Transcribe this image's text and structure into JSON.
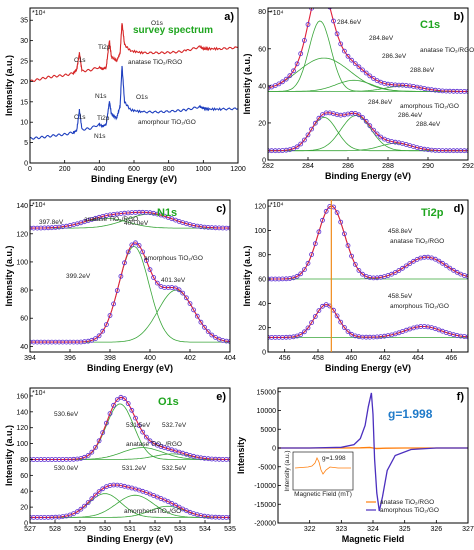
{
  "figure": {
    "panels": [
      {
        "id": "a",
        "panel_label": "a)",
        "multiplier": "*10⁴",
        "title": "survey spectrum",
        "xlabel": "Binding Energy (eV)",
        "ylabel": "Intensity (a.u.)",
        "xlim": [
          0,
          1200
        ],
        "ylim": [
          0,
          38
        ],
        "xticks": [
          0,
          200,
          400,
          600,
          800,
          1000,
          1200
        ],
        "yticks": [
          0,
          5,
          10,
          15,
          20,
          25,
          30,
          35
        ],
        "series_labels": [
          {
            "text": "anatase TiO₂/RGO",
            "color": "#d62728"
          },
          {
            "text": "amorphour TiO₂/GO",
            "color": "#1f3fbf"
          }
        ],
        "annotations": [
          "O1s",
          "Ti2p",
          "C1s",
          "N1s",
          "O1s",
          "Ti2p",
          "C1s",
          "N1s"
        ]
      },
      {
        "id": "b",
        "panel_label": "b)",
        "multiplier": "*10⁴",
        "title": "C1s",
        "xlabel": "Binding Energy (eV)",
        "ylabel": "Intensity (a.u.)",
        "xlim": [
          282,
          292
        ],
        "ylim": [
          0,
          82
        ],
        "xticks": [
          282,
          284,
          286,
          288,
          290,
          292
        ],
        "yticks": [
          0,
          20,
          40,
          60,
          80
        ],
        "series_labels": [
          {
            "text": "anatase TiO₂/RGO",
            "color": "#d62728"
          },
          {
            "text": "amorphous TiO₂/GO",
            "color": "#1f3fbf"
          }
        ],
        "annotations": [
          "284.6eV",
          "284.8eV",
          "286.3eV",
          "288.8eV",
          "284.8eV",
          "286.4eV",
          "288.4eV"
        ]
      },
      {
        "id": "c",
        "panel_label": "c)",
        "multiplier": "*10⁴",
        "title": "N1s",
        "xlabel": "Binding Energy (eV)",
        "ylabel": "Intensity (a.u.)",
        "xlim": [
          394,
          404
        ],
        "ylim": [
          36,
          144
        ],
        "xticks": [
          394,
          396,
          398,
          400,
          402,
          404
        ],
        "yticks": [
          40,
          60,
          80,
          100,
          120,
          140
        ],
        "series_labels": [
          {
            "text": "anatase TiO₂/RGO",
            "color": "#d62728"
          },
          {
            "text": "amorphous TiO₂/GO",
            "color": "#1f3fbf"
          }
        ],
        "annotations": [
          "397.8eV",
          "400.0eV",
          "399.2eV",
          "401.3eV"
        ]
      },
      {
        "id": "d",
        "panel_label": "d)",
        "multiplier": "*10⁴",
        "title": "Ti2p",
        "xlabel": "Binding Energy (eV)",
        "ylabel": "Intensity (a.u.)",
        "xlim": [
          455,
          467
        ],
        "ylim": [
          0,
          125
        ],
        "xticks": [
          456,
          458,
          460,
          462,
          464,
          466
        ],
        "yticks": [
          0,
          20,
          40,
          60,
          80,
          100,
          120
        ],
        "series_labels": [
          {
            "text": "anatase TiO₂/RGO",
            "color": "#d62728"
          },
          {
            "text": "amorphous TiO₂/GO",
            "color": "#1f3fbf"
          }
        ],
        "annotations": [
          "458.8eV",
          "458.5eV"
        ]
      },
      {
        "id": "e",
        "panel_label": "e)",
        "multiplier": "*10⁴",
        "title": "O1s",
        "xlabel": "Binding Energy (eV)",
        "ylabel": "Intensity (a.u.)",
        "xlim": [
          527,
          535
        ],
        "ylim": [
          0,
          170
        ],
        "xticks": [
          527,
          528,
          529,
          530,
          531,
          532,
          533,
          534,
          535
        ],
        "yticks": [
          0,
          20,
          40,
          60,
          80,
          100,
          120,
          140,
          160
        ],
        "series_labels": [
          {
            "text": "anatase TiO₂ /RGO",
            "color": "#d62728"
          },
          {
            "text": "amorphousTiO₂/GO",
            "color": "#1f3fbf"
          }
        ],
        "annotations": [
          "530.6eV",
          "531.5eV",
          "532.7eV",
          "530.0eV",
          "531.2eV",
          "532.5eV"
        ]
      },
      {
        "id": "f",
        "panel_label": "f)",
        "title": "g=1.998",
        "xlabel": "Magnetic Field",
        "ylabel": "Intensity",
        "xlim": [
          321,
          327
        ],
        "ylim": [
          -20000,
          16000
        ],
        "xticks": [
          322,
          323,
          324,
          325,
          326,
          327
        ],
        "yticks": [
          -20000,
          -15000,
          -10000,
          -5000,
          0,
          5000,
          10000,
          15000
        ],
        "legend": [
          {
            "text": "anatase TiO₂/RGO",
            "color": "#ff7f0e"
          },
          {
            "text": "amorphous TiO₂/GO",
            "color": "#4b2fbf"
          }
        ],
        "inset": {
          "label": "g=1.998",
          "xlabel": "Magnetic Field (mT)",
          "ylabel": "Intensity (a.u.)",
          "color": "#ff7f0e"
        }
      }
    ]
  },
  "chart_data": [
    {
      "type": "line",
      "panel": "a",
      "title": "survey spectrum",
      "xlabel": "Binding Energy (eV)",
      "ylabel": "Intensity (a.u.)",
      "xlim": [
        0,
        1200
      ],
      "ylim": [
        0,
        38
      ],
      "series": [
        {
          "name": "anatase TiO₂/RGO",
          "color": "#d62728",
          "x": [
            0,
            50,
            100,
            150,
            200,
            250,
            270,
            285,
            300,
            350,
            399,
            420,
            440,
            458,
            470,
            500,
            520,
            531,
            545,
            580,
            650,
            750,
            850,
            900,
            980,
            1000,
            1030,
            1100,
            1200
          ],
          "y": [
            20,
            20.5,
            21,
            21.3,
            21.5,
            22,
            23,
            27,
            22.5,
            22.8,
            23.5,
            23,
            23.5,
            30,
            26,
            25,
            27,
            34.5,
            29,
            27.5,
            27,
            27,
            27.2,
            27.5,
            28.5,
            28,
            28,
            28,
            28.3
          ]
        },
        {
          "name": "amorphour TiO₂/GO",
          "color": "#1f3fbf",
          "x": [
            0,
            50,
            100,
            150,
            200,
            250,
            270,
            285,
            300,
            350,
            399,
            420,
            440,
            458,
            470,
            500,
            520,
            531,
            545,
            580,
            650,
            750,
            850,
            900,
            980,
            1000,
            1030,
            1100,
            1200
          ],
          "y": [
            6,
            6.2,
            6.5,
            6.8,
            7,
            7.5,
            8,
            13,
            8.2,
            8.5,
            9.5,
            9,
            9.5,
            15,
            12,
            11,
            14,
            24,
            15,
            13,
            12.5,
            12.5,
            12.8,
            13,
            13.8,
            13.5,
            13.2,
            13.2,
            13.3
          ]
        }
      ]
    },
    {
      "type": "line",
      "panel": "b",
      "title": "C1s",
      "xlabel": "Binding Energy (eV)",
      "ylabel": "Intensity (a.u.)",
      "xlim": [
        282,
        292
      ],
      "ylim": [
        0,
        82
      ],
      "peaks": [
        {
          "name": "anatase TiO₂/RGO",
          "baseline": 37,
          "components": [
            [
              284.6,
              38,
              0.55
            ],
            [
              284.8,
              18,
              1.3
            ],
            [
              286.3,
              6,
              0.9
            ],
            [
              288.8,
              3,
              0.9
            ]
          ],
          "peak_labels": [
            "284.6eV",
            "284.8eV",
            "286.3eV",
            "288.8eV"
          ]
        },
        {
          "name": "amorphous TiO₂/GO",
          "baseline": 5,
          "components": [
            [
              284.8,
              18,
              0.65
            ],
            [
              286.4,
              19,
              0.75
            ],
            [
              288.4,
              4,
              0.8
            ]
          ],
          "peak_labels": [
            "284.8eV",
            "286.4eV",
            "288.4eV"
          ]
        }
      ]
    },
    {
      "type": "line",
      "panel": "c",
      "title": "N1s",
      "xlabel": "Binding Energy (eV)",
      "ylabel": "Intensity (a.u.)",
      "xlim": [
        394,
        404
      ],
      "ylim": [
        36,
        144
      ],
      "peaks": [
        {
          "name": "anatase TiO₂/RGO",
          "baseline": 124,
          "components": [
            [
              397.8,
              7,
              1.1
            ],
            [
              400.0,
              10,
              1.2
            ]
          ],
          "peak_labels": [
            "397.8eV",
            "400.0eV"
          ]
        },
        {
          "name": "amorphous TiO₂/GO",
          "baseline": 43,
          "components": [
            [
              399.2,
              68,
              0.75
            ],
            [
              401.3,
              37,
              0.9
            ]
          ],
          "peak_labels": [
            "399.2eV",
            "401.3eV"
          ]
        }
      ]
    },
    {
      "type": "line",
      "panel": "d",
      "title": "Ti2p",
      "xlabel": "Binding Energy (eV)",
      "ylabel": "Intensity (a.u.)",
      "xlim": [
        455,
        467
      ],
      "ylim": [
        0,
        125
      ],
      "peaks": [
        {
          "name": "anatase TiO₂/RGO",
          "baseline": 60,
          "components": [
            [
              458.8,
              60,
              0.8
            ],
            [
              464.5,
              18,
              1.2
            ]
          ],
          "peak_labels": [
            "458.8eV"
          ]
        },
        {
          "name": "amorphous TiO₂/GO",
          "baseline": 12,
          "components": [
            [
              458.5,
              27,
              0.7
            ],
            [
              464.3,
              9,
              1.1
            ]
          ],
          "peak_labels": [
            "458.5eV"
          ]
        }
      ]
    },
    {
      "type": "line",
      "panel": "e",
      "title": "O1s",
      "xlabel": "Binding Energy (eV)",
      "ylabel": "Intensity (a.u.)",
      "xlim": [
        527,
        535
      ],
      "ylim": [
        0,
        170
      ],
      "peaks": [
        {
          "name": "anatase TiO₂ /RGO",
          "baseline": 80,
          "components": [
            [
              530.6,
              70,
              0.55
            ],
            [
              531.5,
              15,
              0.8
            ],
            [
              532.7,
              7,
              0.7
            ]
          ],
          "peak_labels": [
            "530.6eV",
            "531.5eV",
            "532.7eV"
          ]
        },
        {
          "name": "amorphousTiO₂/GO",
          "baseline": 7,
          "components": [
            [
              530.0,
              30,
              0.65
            ],
            [
              531.2,
              28,
              0.75
            ],
            [
              532.5,
              14,
              0.7
            ]
          ],
          "peak_labels": [
            "530.0eV",
            "531.2eV",
            "532.5eV"
          ]
        }
      ]
    },
    {
      "type": "line",
      "panel": "f",
      "title": "g=1.998",
      "xlabel": "Magnetic Field",
      "ylabel": "Intensity",
      "xlim": [
        321,
        327
      ],
      "ylim": [
        -20000,
        16000
      ],
      "series": [
        {
          "name": "anatase TiO₂/RGO",
          "color": "#ff7f0e",
          "x": [
            321,
            322,
            323,
            323.6,
            323.9,
            324,
            324.1,
            324.4,
            325,
            326,
            327
          ],
          "y": [
            0,
            0,
            0,
            50,
            150,
            0,
            -150,
            -50,
            0,
            0,
            0
          ]
        },
        {
          "name": "amorphous TiO₂/GO",
          "color": "#4b2fbf",
          "x": [
            321,
            322,
            323,
            323.4,
            323.6,
            323.75,
            323.85,
            323.95,
            324.0,
            324.05,
            324.12,
            324.2,
            324.3,
            324.45,
            324.7,
            325.2,
            326,
            327
          ],
          "y": [
            0,
            0,
            200,
            900,
            2500,
            6000,
            11000,
            14700,
            9000,
            -3000,
            -12000,
            -16800,
            -13000,
            -6000,
            -2000,
            -400,
            0,
            0
          ]
        }
      ]
    }
  ]
}
